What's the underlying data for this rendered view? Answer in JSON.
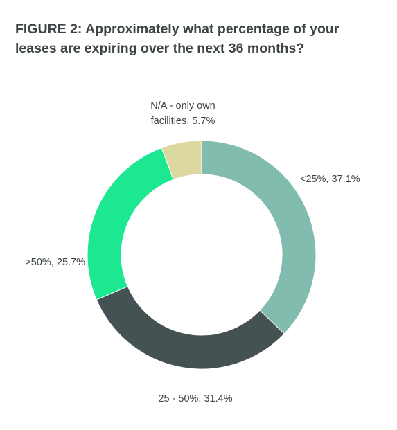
{
  "title": "FIGURE 2: Approximately what percentage of your leases are expiring over the next 36 months?",
  "chart_data": {
    "type": "pie",
    "style": "donut",
    "title": "FIGURE 2: Approximately what percentage of your leases are expiring over the next 36 months?",
    "categories": [
      "<25%",
      "25 - 50%",
      ">50%",
      "N/A - only own facilities"
    ],
    "values": [
      37.1,
      31.4,
      25.7,
      5.7
    ],
    "unit": "%",
    "start_angle": "12 o'clock, clockwise",
    "colors": [
      "#82bcae",
      "#455253",
      "#1de892",
      "#dcd9a0"
    ],
    "labels": [
      [
        "<25%, 37.1%"
      ],
      [
        "25 - 50%, 31.4%"
      ],
      [
        ">50%, 25.7%"
      ],
      [
        "N/A - only own",
        "facilities, 5.7%"
      ]
    ],
    "legend": "none"
  }
}
